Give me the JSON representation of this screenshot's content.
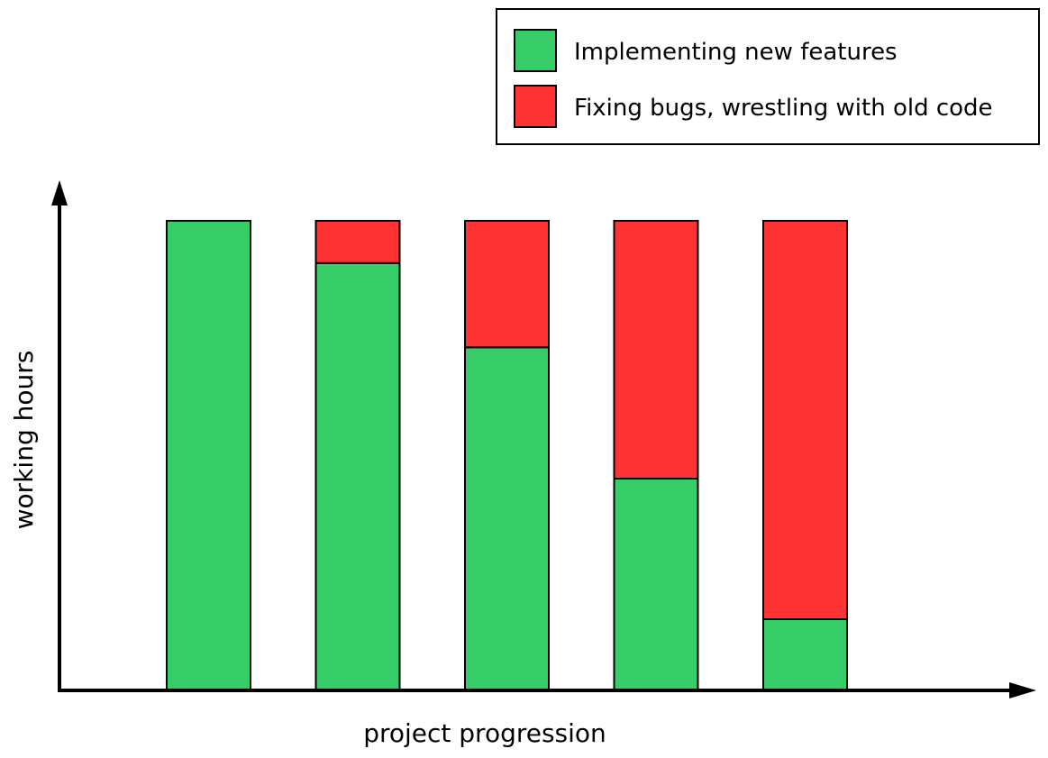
{
  "chart_data": {
    "type": "bar",
    "stacked": true,
    "categories": [
      "",
      "",
      "",
      "",
      ""
    ],
    "series": [
      {
        "name": "Implementing new features",
        "color": "#36cc68",
        "values": [
          100,
          91,
          73,
          45,
          15
        ]
      },
      {
        "name": "Fixing bugs, wrestling with old code",
        "color": "#ff3334",
        "values": [
          0,
          9,
          27,
          55,
          85
        ]
      }
    ],
    "title": "",
    "xlabel": "project progression",
    "ylabel": "working hours",
    "ylim": [
      0,
      100
    ],
    "grid": false,
    "legend_position": "top-right",
    "axis_ticks": false
  }
}
